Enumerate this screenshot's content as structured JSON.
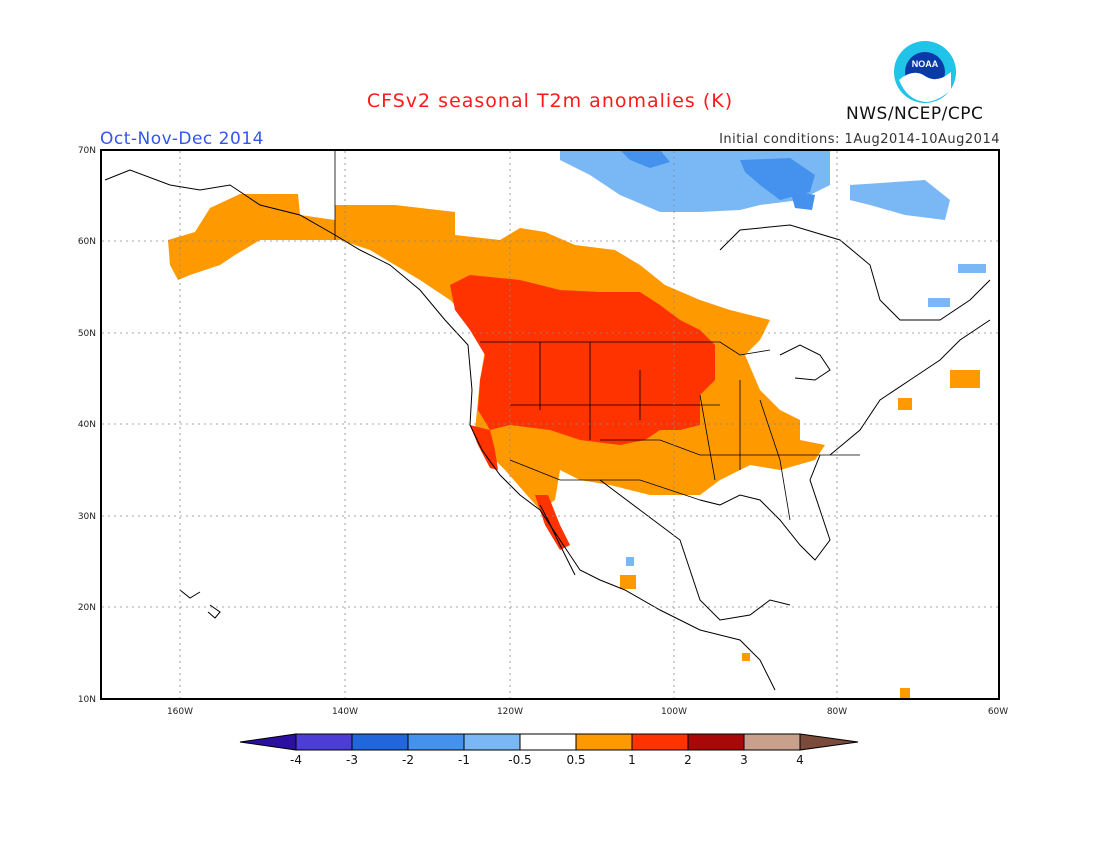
{
  "title": "CFSv2 seasonal T2m anomalies (K)",
  "season": "Oct-Nov-Dec 2014",
  "initial_conditions": "Initial conditions: 1Aug2014-10Aug2014",
  "agency": "NWS/NCEP/CPC",
  "logo_text": "NOAA",
  "lat_labels": [
    "70N",
    "60N",
    "50N",
    "40N",
    "30N",
    "20N",
    "10N"
  ],
  "lon_labels": [
    "160W",
    "140W",
    "120W",
    "100W",
    "80W",
    "60W"
  ],
  "colorbar": {
    "labels": [
      "-4",
      "-3",
      "-2",
      "-1",
      "-0.5",
      "0.5",
      "1",
      "2",
      "3",
      "4"
    ],
    "colors": [
      "#2a0fa0",
      "#4b3dd6",
      "#2266dd",
      "#4492ee",
      "#7ab8f5",
      "#ffffff",
      "#ff9900",
      "#ff3300",
      "#a80808",
      "#c8a08c",
      "#7a4a3a"
    ]
  },
  "anomaly_regions": [
    {
      "label": "Western US / SW Canada warm core",
      "category": "1 to 2 K"
    },
    {
      "label": "Western & central North America",
      "category": "0.5 to 1 K"
    },
    {
      "label": "Alaska",
      "category": "0.5 to 1 K"
    },
    {
      "label": "Southern California / Baja coast",
      "category": "1 to 2 K"
    },
    {
      "label": "Canadian Arctic Archipelago",
      "category": "-1 to -0.5 K"
    },
    {
      "label": "Northern Hudson Bay area",
      "category": "-2 to -1 K"
    }
  ]
}
